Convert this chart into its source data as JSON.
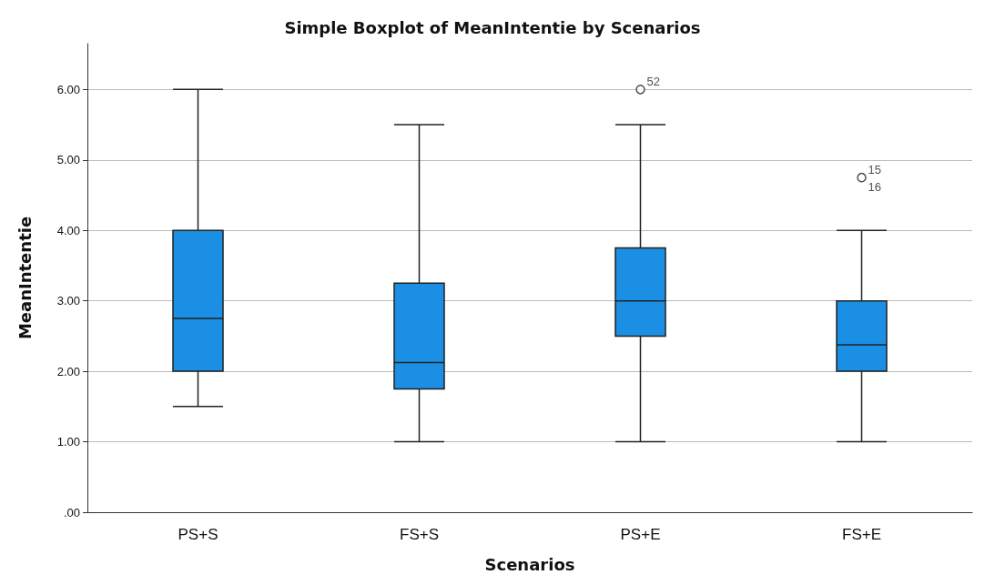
{
  "chart_data": {
    "type": "box",
    "title": "Simple Boxplot of MeanIntentie by Scenarios",
    "xlabel": "Scenarios",
    "ylabel": "MeanIntentie",
    "categories": [
      "PS+S",
      "FS+S",
      "PS+E",
      "FS+E"
    ],
    "color": "#1a8fe3",
    "boxes": [
      {
        "low": 1.5,
        "q1": 2.0,
        "median": 2.75,
        "q3": 4.0,
        "high": 6.0
      },
      {
        "low": 1.0,
        "q1": 1.75,
        "median": 2.125,
        "q3": 3.25,
        "high": 5.5
      },
      {
        "low": 1.0,
        "q1": 2.5,
        "median": 3.0,
        "q3": 3.75,
        "high": 5.5,
        "outliers": [
          6.0
        ]
      },
      {
        "low": 1.0,
        "q1": 2.0,
        "median": 2.375,
        "q3": 3.0,
        "high": 4.0,
        "outliers": [
          4.75
        ]
      }
    ],
    "ylim": [
      0,
      6.65
    ],
    "yticks": [
      {
        "value": 0,
        "label": ".00"
      },
      {
        "value": 1,
        "label": "1.00"
      },
      {
        "value": 2,
        "label": "2.00"
      },
      {
        "value": 3,
        "label": "3.00"
      },
      {
        "value": 4,
        "label": "4.00"
      },
      {
        "value": 5,
        "label": "5.00"
      },
      {
        "value": 6,
        "label": "6.00"
      }
    ],
    "grid": "y",
    "marker": "circle",
    "annotations": [
      "52",
      "15",
      "16"
    ]
  }
}
